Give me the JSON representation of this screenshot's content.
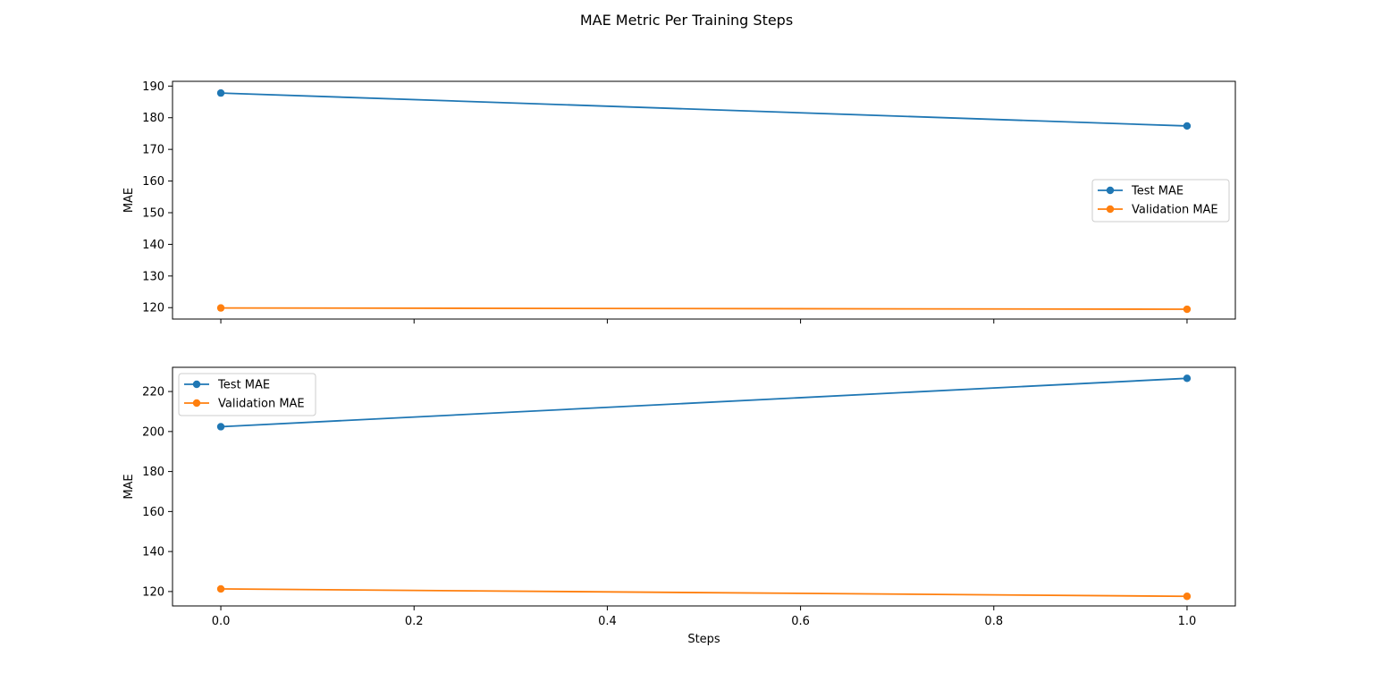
{
  "figure_title": "MAE Metric Per Training Steps",
  "colors": {
    "test": "#1f77b4",
    "validation": "#ff7f0e"
  },
  "chart_data": [
    {
      "type": "line",
      "title": "",
      "xlabel": "",
      "ylabel": "MAE",
      "x": [
        0,
        1
      ],
      "xlim": [
        -0.05,
        1.05
      ],
      "ylim": [
        116.4,
        191.5
      ],
      "yticks": [
        120,
        130,
        140,
        150,
        160,
        170,
        180,
        190
      ],
      "xticks": [
        0.0,
        0.2,
        0.4,
        0.6,
        0.8,
        1.0
      ],
      "show_xtick_labels": false,
      "legend_position": "center-right",
      "grid": false,
      "series": [
        {
          "name": "Test MAE",
          "values": [
            187.8,
            177.4
          ],
          "color": "#1f77b4",
          "marker": "circle"
        },
        {
          "name": "Validation MAE",
          "values": [
            119.9,
            119.5
          ],
          "color": "#ff7f0e",
          "marker": "circle"
        }
      ]
    },
    {
      "type": "line",
      "title": "",
      "xlabel": "Steps",
      "ylabel": "MAE",
      "x": [
        0,
        1
      ],
      "xlim": [
        -0.05,
        1.05
      ],
      "ylim": [
        112.8,
        232.1
      ],
      "yticks": [
        120,
        140,
        160,
        180,
        200,
        220
      ],
      "xticks": [
        0.0,
        0.2,
        0.4,
        0.6,
        0.8,
        1.0
      ],
      "show_xtick_labels": true,
      "legend_position": "upper-left",
      "grid": false,
      "series": [
        {
          "name": "Test MAE",
          "values": [
            202.4,
            226.6
          ],
          "color": "#1f77b4",
          "marker": "circle"
        },
        {
          "name": "Validation MAE",
          "values": [
            121.3,
            117.6
          ],
          "color": "#ff7f0e",
          "marker": "circle"
        }
      ]
    }
  ]
}
